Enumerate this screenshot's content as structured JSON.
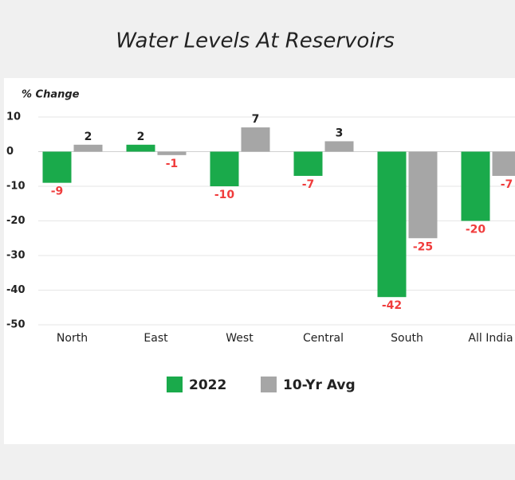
{
  "chart_data": {
    "type": "bar",
    "title": "Water Levels At Reservoirs",
    "ylabel": "% Change",
    "categories": [
      "North",
      "East",
      "West",
      "Central",
      "South",
      "All India"
    ],
    "series": [
      {
        "name": "2022",
        "color": "#1aaa4b",
        "values": [
          -9,
          2,
          -10,
          -7,
          -42,
          -20
        ]
      },
      {
        "name": "10-Yr Avg",
        "color": "#a6a6a6",
        "values": [
          2,
          -1,
          7,
          3,
          -25,
          -7
        ]
      }
    ],
    "ylim": [
      -50,
      10
    ],
    "yticks": [
      10,
      0,
      -10,
      -20,
      -30,
      -40,
      -50
    ],
    "grid": true,
    "legend": "bottom"
  }
}
